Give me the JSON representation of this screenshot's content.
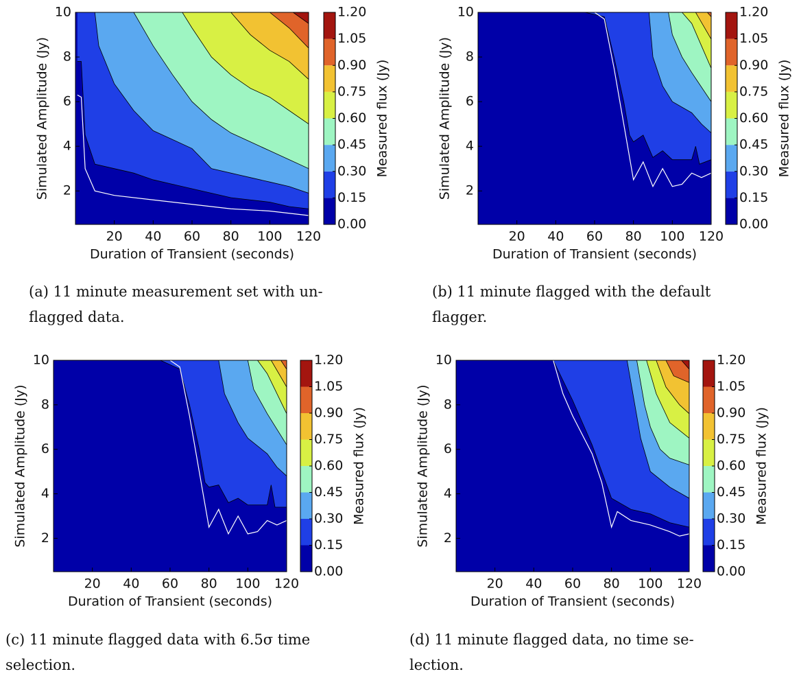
{
  "chart_data": [
    {
      "type": "contour",
      "caption": [
        "(a) 11 minute measurement set with un-",
        "flagged data."
      ],
      "xlabel": "Duration of Transient (seconds)",
      "ylabel": "Simulated Amplitude (Jy)",
      "colorbar_label": "Measured flux (Jy)",
      "xlim": [
        0,
        120
      ],
      "ylim": [
        0.5,
        10
      ],
      "xticks": [
        20,
        40,
        60,
        80,
        100,
        120
      ],
      "yticks": [
        2,
        4,
        6,
        8,
        10
      ],
      "levels": [
        {
          "value": 0,
          "label": "0.00"
        },
        {
          "value": 0.15,
          "label": "0.15"
        },
        {
          "value": 0.3,
          "label": "0.30"
        },
        {
          "value": 0.45,
          "label": "0.45"
        },
        {
          "value": 0.6,
          "label": "0.60"
        },
        {
          "value": 0.75,
          "label": "0.75"
        },
        {
          "value": 0.9,
          "label": "0.90"
        },
        {
          "value": 1.05,
          "label": "1.05"
        },
        {
          "value": 1.2,
          "label": "1.20"
        }
      ],
      "colors": [
        "#0000a8",
        "#1f3fe6",
        "#5aa8f0",
        "#9ef5c2",
        "#d8f044",
        "#f2c232",
        "#e0642a",
        "#a3150f"
      ],
      "contours": [
        {
          "level": 0.15,
          "x": [
            1,
            3,
            5,
            10,
            20,
            30,
            40,
            50,
            60,
            70,
            80,
            90,
            100,
            110,
            120
          ],
          "y": [
            7.8,
            7.8,
            4.5,
            3.2,
            3.0,
            2.8,
            2.5,
            2.3,
            2.1,
            1.9,
            1.7,
            1.6,
            1.5,
            1.3,
            1.2
          ]
        },
        {
          "level": 0.3,
          "x": [
            10,
            12,
            20,
            30,
            40,
            50,
            60,
            70,
            80,
            90,
            100,
            110,
            120
          ],
          "y": [
            10,
            8.5,
            6.8,
            5.6,
            4.7,
            4.3,
            3.9,
            3.0,
            2.8,
            2.6,
            2.4,
            2.2,
            1.9
          ]
        },
        {
          "level": 0.45,
          "x": [
            30,
            40,
            50,
            60,
            70,
            80,
            90,
            100,
            110,
            120
          ],
          "y": [
            10,
            8.5,
            7.2,
            6.0,
            5.2,
            4.6,
            4.2,
            3.8,
            3.4,
            3.0
          ]
        },
        {
          "level": 0.6,
          "x": [
            55,
            60,
            70,
            80,
            90,
            100,
            110,
            120
          ],
          "y": [
            10,
            9.3,
            8.0,
            7.2,
            6.6,
            6.2,
            5.6,
            5.0
          ]
        },
        {
          "level": 0.75,
          "x": [
            80,
            90,
            100,
            110,
            120
          ],
          "y": [
            10,
            9.0,
            8.3,
            7.8,
            7.0
          ]
        },
        {
          "level": 0.9,
          "x": [
            100,
            110,
            120
          ],
          "y": [
            10,
            9.3,
            8.4
          ]
        },
        {
          "level": 1.05,
          "x": [
            112,
            120
          ],
          "y": [
            10,
            9.5
          ]
        }
      ],
      "threshold": {
        "color": "#ffffff",
        "x": [
          1,
          3,
          5,
          10,
          20,
          40,
          60,
          80,
          100,
          120
        ],
        "y": [
          6.3,
          6.2,
          3.0,
          2.0,
          1.8,
          1.6,
          1.4,
          1.2,
          1.1,
          0.9
        ]
      }
    },
    {
      "type": "contour",
      "caption": [
        "(b) 11 minute flagged with the default",
        "flagger."
      ],
      "xlabel": "Duration of Transient (seconds)",
      "ylabel": "Simulated Amplitude (Jy)",
      "colorbar_label": "Measured flux (Jy)",
      "xlim": [
        0,
        120
      ],
      "ylim": [
        0.5,
        10
      ],
      "xticks": [
        20,
        40,
        60,
        80,
        100,
        120
      ],
      "yticks": [
        2,
        4,
        6,
        8,
        10
      ],
      "levels": [
        {
          "value": 0,
          "label": "0.00"
        },
        {
          "value": 0.15,
          "label": "0.15"
        },
        {
          "value": 0.3,
          "label": "0.30"
        },
        {
          "value": 0.45,
          "label": "0.45"
        },
        {
          "value": 0.6,
          "label": "0.60"
        },
        {
          "value": 0.75,
          "label": "0.75"
        },
        {
          "value": 0.9,
          "label": "0.90"
        },
        {
          "value": 1.05,
          "label": "1.05"
        },
        {
          "value": 1.2,
          "label": "1.20"
        }
      ],
      "colors": [
        "#0000a8",
        "#1f3fe6",
        "#5aa8f0",
        "#9ef5c2",
        "#d8f044",
        "#f2c232",
        "#e0642a",
        "#a3150f"
      ],
      "contours": [
        {
          "level": 0.15,
          "x": [
            55,
            65,
            70,
            75,
            78,
            80,
            85,
            90,
            95,
            100,
            110,
            112,
            114,
            120
          ],
          "y": [
            10,
            9.8,
            8,
            6,
            4.5,
            4.2,
            4.5,
            3.5,
            3.8,
            3.4,
            3.4,
            4.0,
            3.2,
            3.4
          ]
        },
        {
          "level": 0.3,
          "x": [
            88,
            90,
            95,
            100,
            110,
            115,
            120
          ],
          "y": [
            10,
            8,
            6.7,
            6.0,
            5.5,
            5.0,
            4.6
          ]
        },
        {
          "level": 0.45,
          "x": [
            98,
            100,
            105,
            110,
            120
          ],
          "y": [
            10,
            9,
            8,
            7.3,
            6.0
          ]
        },
        {
          "level": 0.6,
          "x": [
            105,
            110,
            115,
            120
          ],
          "y": [
            10,
            9.5,
            8.5,
            7.5
          ]
        },
        {
          "level": 0.75,
          "x": [
            112,
            120
          ],
          "y": [
            10,
            8.8
          ]
        },
        {
          "level": 0.9,
          "x": [
            118,
            120
          ],
          "y": [
            10,
            9.8
          ]
        }
      ],
      "threshold": {
        "color": "#ffffff",
        "x": [
          60,
          65,
          70,
          75,
          80,
          85,
          90,
          95,
          100,
          105,
          110,
          115,
          120
        ],
        "y": [
          10,
          9.7,
          7.5,
          5,
          2.5,
          3.3,
          2.2,
          3.0,
          2.2,
          2.3,
          2.8,
          2.6,
          2.8
        ]
      }
    },
    {
      "type": "contour",
      "caption": [
        "(c) 11 minute flagged data with 6.5σ time",
        "selection."
      ],
      "xlabel": "Duration of Transient (seconds)",
      "ylabel": "Simulated Amplitude (Jy)",
      "colorbar_label": "Measured flux (Jy)",
      "xlim": [
        0,
        120
      ],
      "ylim": [
        0.5,
        10
      ],
      "xticks": [
        20,
        40,
        60,
        80,
        100,
        120
      ],
      "yticks": [
        2,
        4,
        6,
        8,
        10
      ],
      "levels": [
        {
          "value": 0,
          "label": "0.00"
        },
        {
          "value": 0.15,
          "label": "0.15"
        },
        {
          "value": 0.3,
          "label": "0.30"
        },
        {
          "value": 0.45,
          "label": "0.45"
        },
        {
          "value": 0.6,
          "label": "0.60"
        },
        {
          "value": 0.75,
          "label": "0.75"
        },
        {
          "value": 0.9,
          "label": "0.90"
        },
        {
          "value": 1.05,
          "label": "1.05"
        },
        {
          "value": 1.2,
          "label": "1.20"
        }
      ],
      "colors": [
        "#0000a8",
        "#1f3fe6",
        "#5aa8f0",
        "#9ef5c2",
        "#d8f044",
        "#f2c232",
        "#e0642a",
        "#a3150f"
      ],
      "contours": [
        {
          "level": 0.15,
          "x": [
            55,
            65,
            70,
            75,
            78,
            80,
            85,
            90,
            95,
            100,
            110,
            112,
            114,
            120
          ],
          "y": [
            10,
            9.6,
            8,
            6,
            4.5,
            4.3,
            4.4,
            3.6,
            3.8,
            3.5,
            3.5,
            4.4,
            3.4,
            3.4
          ]
        },
        {
          "level": 0.3,
          "x": [
            85,
            88,
            95,
            100,
            110,
            115,
            120
          ],
          "y": [
            10,
            8.5,
            7.2,
            6.5,
            5.8,
            5.2,
            4.8
          ]
        },
        {
          "level": 0.45,
          "x": [
            100,
            103,
            110,
            120
          ],
          "y": [
            10,
            8.7,
            7.6,
            6.2
          ]
        },
        {
          "level": 0.6,
          "x": [
            105,
            110,
            120
          ],
          "y": [
            10,
            9.4,
            7.6
          ]
        },
        {
          "level": 0.75,
          "x": [
            112,
            120
          ],
          "y": [
            10,
            8.8
          ]
        },
        {
          "level": 0.9,
          "x": [
            117,
            120
          ],
          "y": [
            10,
            9.6
          ]
        }
      ],
      "threshold": {
        "color": "#ffffff",
        "x": [
          60,
          65,
          70,
          75,
          80,
          85,
          90,
          95,
          100,
          105,
          110,
          115,
          120
        ],
        "y": [
          10,
          9.7,
          7.5,
          5,
          2.5,
          3.3,
          2.2,
          3.0,
          2.2,
          2.3,
          2.8,
          2.6,
          2.8
        ]
      }
    },
    {
      "type": "contour",
      "caption": [
        "(d) 11 minute flagged data, no time se-",
        "lection."
      ],
      "xlabel": "Duration of Transient (seconds)",
      "ylabel": "Simulated Amplitude (Jy)",
      "colorbar_label": "Measured flux (Jy)",
      "xlim": [
        0,
        120
      ],
      "ylim": [
        0.5,
        10
      ],
      "xticks": [
        20,
        40,
        60,
        80,
        100,
        120
      ],
      "yticks": [
        2,
        4,
        6,
        8,
        10
      ],
      "levels": [
        {
          "value": 0,
          "label": "0.00"
        },
        {
          "value": 0.15,
          "label": "0.15"
        },
        {
          "value": 0.3,
          "label": "0.30"
        },
        {
          "value": 0.45,
          "label": "0.45"
        },
        {
          "value": 0.6,
          "label": "0.60"
        },
        {
          "value": 0.75,
          "label": "0.75"
        },
        {
          "value": 0.9,
          "label": "0.90"
        },
        {
          "value": 1.05,
          "label": "1.05"
        },
        {
          "value": 1.2,
          "label": "1.20"
        }
      ],
      "colors": [
        "#0000a8",
        "#1f3fe6",
        "#5aa8f0",
        "#9ef5c2",
        "#d8f044",
        "#f2c232",
        "#e0642a",
        "#a3150f"
      ],
      "contours": [
        {
          "level": 0.15,
          "x": [
            50,
            60,
            70,
            75,
            80,
            90,
            100,
            110,
            120
          ],
          "y": [
            10,
            8.2,
            6.2,
            5,
            3.8,
            3.3,
            3.1,
            2.7,
            2.5
          ]
        },
        {
          "level": 0.3,
          "x": [
            88,
            92,
            95,
            100,
            110,
            120
          ],
          "y": [
            10,
            8,
            6.5,
            5.0,
            4.3,
            3.8
          ]
        },
        {
          "level": 0.45,
          "x": [
            93,
            97,
            100,
            105,
            110,
            120
          ],
          "y": [
            10,
            8,
            7,
            6,
            5.6,
            5.3
          ]
        },
        {
          "level": 0.6,
          "x": [
            98,
            103,
            110,
            120
          ],
          "y": [
            10,
            8.5,
            7.2,
            6.5
          ]
        },
        {
          "level": 0.75,
          "x": [
            103,
            108,
            115,
            120
          ],
          "y": [
            10,
            8.8,
            8,
            7.6
          ]
        },
        {
          "level": 0.9,
          "x": [
            108,
            112,
            120
          ],
          "y": [
            10,
            9.3,
            9.0
          ]
        },
        {
          "level": 1.05,
          "x": [
            116,
            120
          ],
          "y": [
            10,
            9.6
          ]
        }
      ],
      "threshold": {
        "color": "#ffffff",
        "x": [
          50,
          55,
          60,
          70,
          75,
          80,
          83,
          90,
          100,
          110,
          115,
          120
        ],
        "y": [
          10,
          8.5,
          7.5,
          5.8,
          4.5,
          2.5,
          3.2,
          2.8,
          2.6,
          2.3,
          2.1,
          2.2
        ]
      }
    }
  ]
}
